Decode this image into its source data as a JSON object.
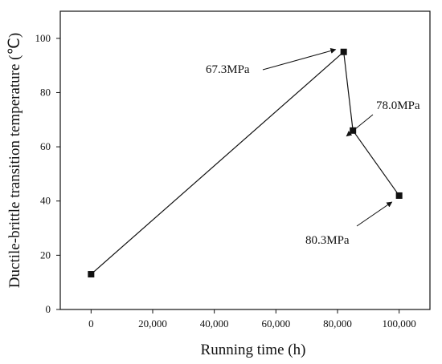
{
  "chart_data": {
    "type": "line",
    "xlabel": "Running time (h)",
    "ylabel": "Ductile-brittle transition temperature (℃)",
    "xlim": [
      -10000,
      110000
    ],
    "ylim": [
      0,
      110
    ],
    "xticks": [
      0,
      20000,
      40000,
      60000,
      80000,
      100000
    ],
    "xtick_labels": [
      "0",
      "20,000",
      "40,000",
      "60,000",
      "80,000",
      "100,000"
    ],
    "yticks": [
      0,
      20,
      40,
      60,
      80,
      100
    ],
    "ytick_labels": [
      "0",
      "20",
      "40",
      "60",
      "80",
      "100"
    ],
    "grid": false,
    "series": [
      {
        "x": [
          0,
          82000,
          85000,
          100000
        ],
        "y": [
          13,
          95,
          66,
          42
        ],
        "marker": "square",
        "color": "#111111"
      }
    ],
    "annotations": [
      {
        "text": "67.3MPa",
        "point_index": 1
      },
      {
        "text": "78.0MPa",
        "point_index": 2
      },
      {
        "text": "80.3MPa",
        "point_index": 3
      }
    ]
  }
}
